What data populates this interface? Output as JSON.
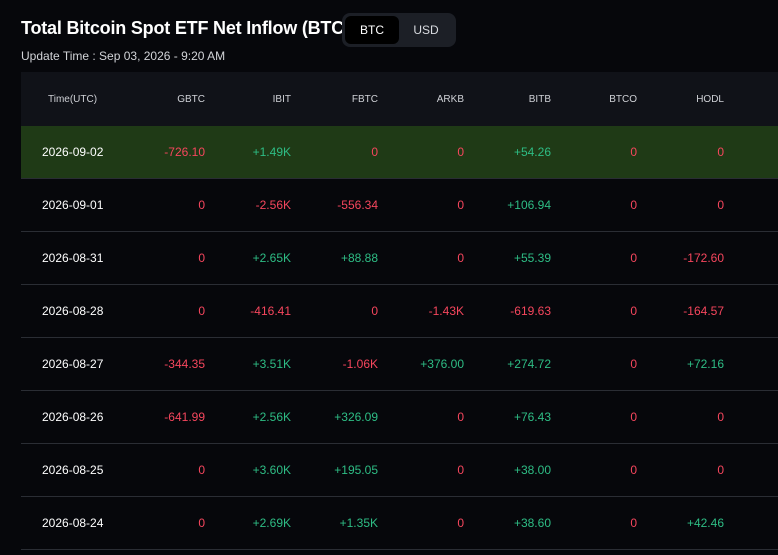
{
  "header": {
    "title": "Total Bitcoin Spot ETF Net Inflow (BTC)",
    "update_time": "Update Time : Sep 03, 2026 - 9:20 AM",
    "toggle": [
      {
        "label": "BTC",
        "active": true
      },
      {
        "label": "USD",
        "active": false
      }
    ]
  },
  "table": {
    "columns": [
      "Time(UTC)",
      "GBTC",
      "IBIT",
      "FBTC",
      "ARKB",
      "BITB",
      "BTCO",
      "HODL"
    ],
    "rows": [
      [
        "2026-09-02",
        "-726.10",
        "+1.49K",
        "0",
        "0",
        "+54.26",
        "0",
        "0"
      ],
      [
        "2026-09-01",
        "0",
        "-2.56K",
        "-556.34",
        "0",
        "+106.94",
        "0",
        "0"
      ],
      [
        "2026-08-31",
        "0",
        "+2.65K",
        "+88.88",
        "0",
        "+55.39",
        "0",
        "-172.60"
      ],
      [
        "2026-08-28",
        "0",
        "-416.41",
        "0",
        "-1.43K",
        "-619.63",
        "0",
        "-164.57"
      ],
      [
        "2026-08-27",
        "-344.35",
        "+3.51K",
        "-1.06K",
        "+376.00",
        "+274.72",
        "0",
        "+72.16"
      ],
      [
        "2026-08-26",
        "-641.99",
        "+2.56K",
        "+326.09",
        "0",
        "+76.43",
        "0",
        "0"
      ],
      [
        "2026-08-25",
        "0",
        "+3.60K",
        "+195.05",
        "0",
        "+38.00",
        "0",
        "0"
      ],
      [
        "2026-08-24",
        "0",
        "+2.69K",
        "+1.35K",
        "0",
        "+38.60",
        "0",
        "+42.46"
      ]
    ],
    "highlighted_row": 0
  },
  "colors": {
    "positive": "#2ebd85",
    "negative": "#f6465d",
    "highlight_row": "#1f3a16",
    "background": "#06070b"
  }
}
